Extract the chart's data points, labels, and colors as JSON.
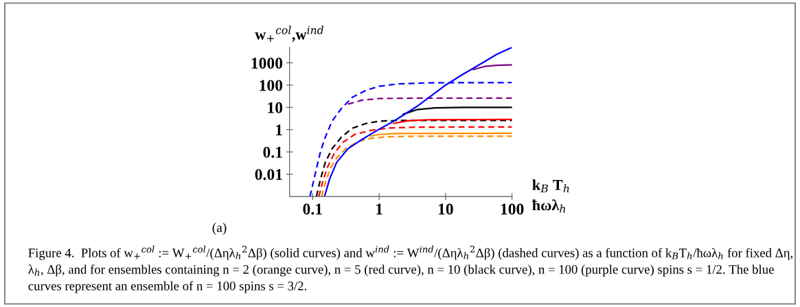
{
  "chart_data": {
    "type": "line",
    "ylabel": "w$_{+}$$^{col}$,w$^{ind}$",
    "xlabel": "k$_{B}$ T$_{h}$\nħωλ$_{h}$",
    "log": "xy",
    "grid": false,
    "xlim": [
      0.045,
      100
    ],
    "ylim": [
      0.001,
      5000
    ],
    "xticks": [
      0.1,
      1,
      10,
      100
    ],
    "yticks": [
      0.01,
      0.1,
      1,
      10,
      100,
      1000
    ],
    "series": [
      {
        "color": "#800080",
        "line_style": "dashed",
        "x": [
          0.34,
          0.55,
          1,
          3.7,
          100
        ],
        "values": [
          14,
          21,
          25,
          26,
          26
        ]
      },
      {
        "color": "#0000ff",
        "line_style": "dashed",
        "x": [
          0.091,
          0.096,
          0.113,
          0.132,
          0.155,
          0.196,
          0.27,
          0.4,
          0.64,
          1,
          1.9,
          5.4,
          100
        ],
        "values": [
          0.001,
          0.0019,
          0.016,
          0.11,
          0.46,
          2.4,
          8.9,
          29,
          59,
          89,
          113,
          127,
          130
        ]
      },
      {
        "color": "#000000",
        "line_style": "dashed",
        "x": [
          0.114,
          0.132,
          0.155,
          0.196,
          0.27,
          0.4,
          0.64,
          1,
          1.9,
          100
        ],
        "values": [
          0.001,
          0.0063,
          0.034,
          0.14,
          0.46,
          1.18,
          1.9,
          2.4,
          2.6,
          2.6
        ]
      },
      {
        "color": "#ff0000",
        "line_style": "dashed",
        "x": [
          0.124,
          0.143,
          0.167,
          0.212,
          0.29,
          0.43,
          0.75,
          1.4,
          3.7,
          100
        ],
        "values": [
          0.001,
          0.005,
          0.021,
          0.087,
          0.28,
          0.61,
          0.93,
          1.18,
          1.3,
          1.33
        ]
      },
      {
        "color": "#ff8c00",
        "line_style": "dashed",
        "x": [
          0.137,
          0.155,
          0.181,
          0.23,
          0.315,
          0.47,
          0.75,
          1.4,
          3.7,
          100
        ],
        "values": [
          0.001,
          0.004,
          0.016,
          0.054,
          0.14,
          0.28,
          0.41,
          0.48,
          0.51,
          0.51
        ]
      },
      {
        "color": "#ff8c00",
        "line_style": "solid",
        "x": [
          0.75,
          1,
          1.9,
          100
        ],
        "values": [
          0.51,
          0.61,
          0.67,
          0.68
        ]
      },
      {
        "color": "#ff0000",
        "line_style": "solid",
        "x": [
          1.66,
          2.7,
          5.4,
          100
        ],
        "values": [
          1.9,
          2.5,
          2.8,
          2.9
        ]
      },
      {
        "color": "#000000",
        "line_style": "solid",
        "x": [
          2.3,
          3.7,
          6.9,
          18,
          100
        ],
        "values": [
          4.9,
          7.9,
          9.5,
          10,
          10
        ]
      },
      {
        "color": "#800080",
        "line_style": "solid",
        "x": [
          26,
          39,
          58,
          100
        ],
        "values": [
          500,
          690,
          770,
          810
        ]
      },
      {
        "color": "#0000ff",
        "line_style": "solid",
        "x": [
          0.151,
          0.181,
          0.23,
          0.34,
          0.55,
          1,
          1.66,
          3.7,
          10,
          18,
          39,
          58,
          100
        ],
        "values": [
          0.001,
          0.0063,
          0.034,
          0.14,
          0.36,
          1.05,
          2.4,
          11,
          100,
          300,
          1150,
          2350,
          5000
        ]
      }
    ],
    "annotations": [
      "(a)",
      "Figure 4.  Plots of w$_{+}$$^{col}$ := W$_{+}$$^{col}$/(Δηλ$_{h}$$^{2}$Δβ) (solid curves) and w$^{ind}$ := W$^{ind}$/(Δηλ$_{h}$$^{2}$Δβ) (dashed curves) as a function of k$_{B}$T$_{h}$/ħωλ$_{h}$ for fixed Δη, λ$_{h}$, Δβ, and for ensembles containing n = 2 (orange curve), n = 5 (red curve), n = 10 (black curve), n = 100 (purple curve) spins s = 1/2. The blue curves represent an ensemble of n = 100 spins s = 3/2."
    ]
  }
}
